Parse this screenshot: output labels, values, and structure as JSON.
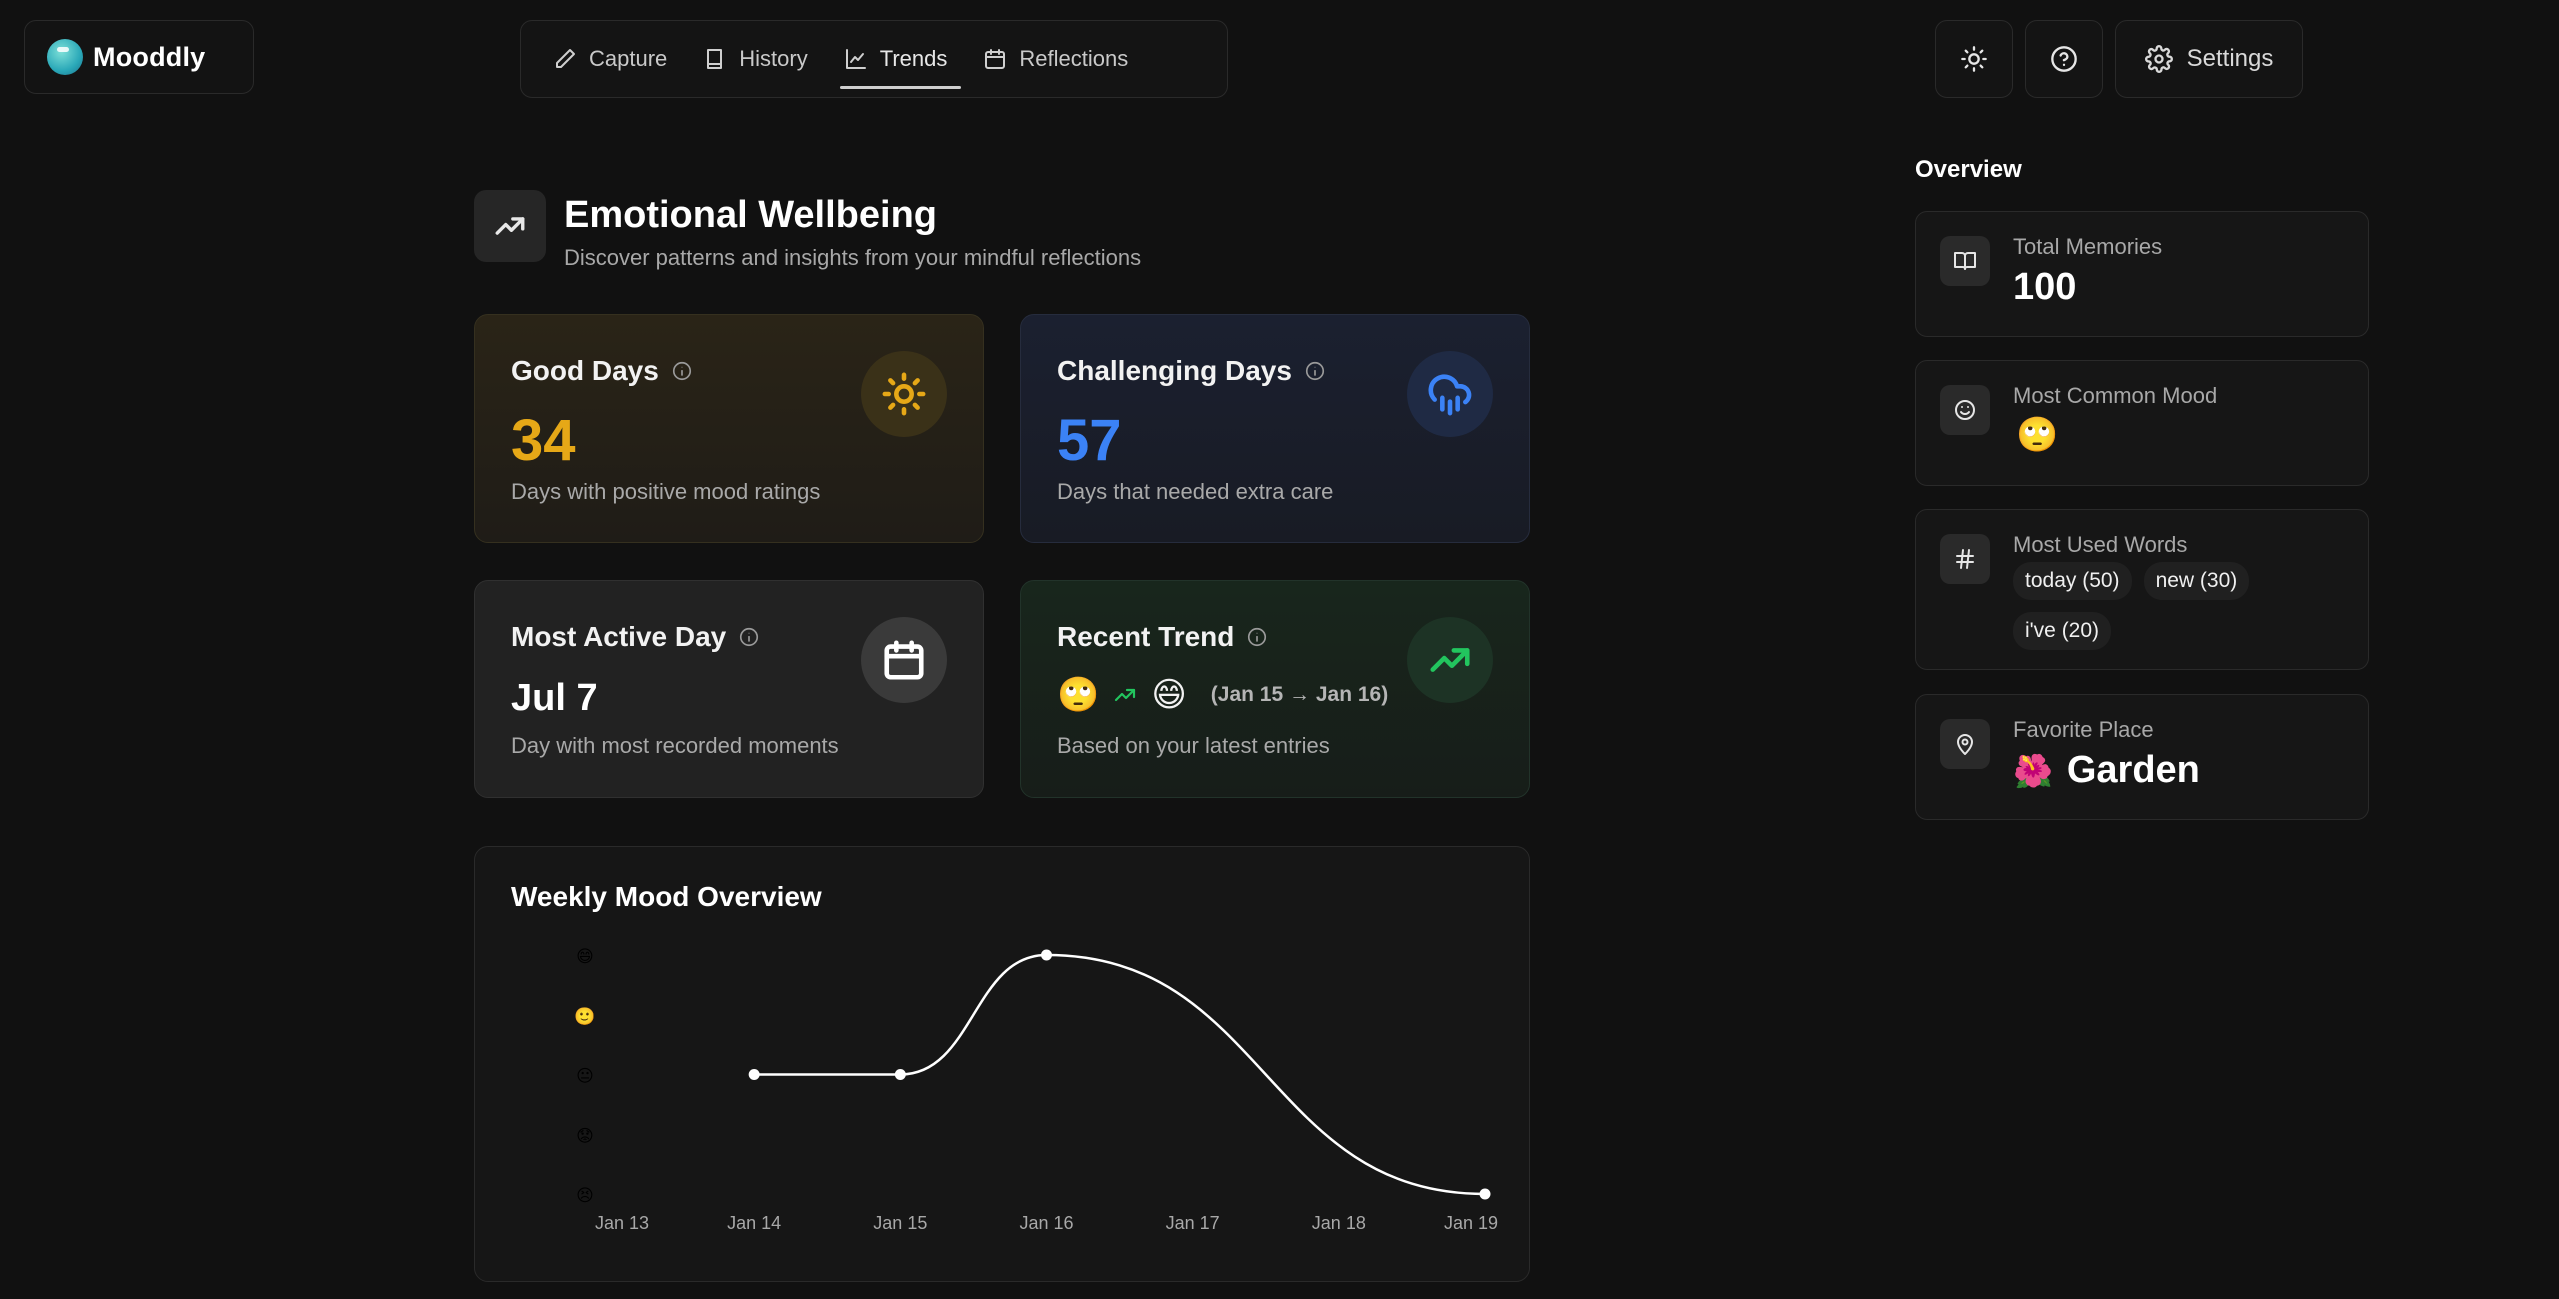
{
  "app": {
    "name": "Mooddly"
  },
  "nav": {
    "items": [
      {
        "label": "Capture",
        "icon": "pencil-icon"
      },
      {
        "label": "History",
        "icon": "book-icon"
      },
      {
        "label": "Trends",
        "icon": "line-chart-icon",
        "active": true
      },
      {
        "label": "Reflections",
        "icon": "calendar-icon"
      }
    ]
  },
  "toolbar": {
    "settings_label": "Settings"
  },
  "header": {
    "title": "Emotional Wellbeing",
    "subtitle": "Discover patterns and insights from your mindful reflections"
  },
  "cards": {
    "good_days": {
      "title": "Good Days",
      "value": "34",
      "desc": "Days with positive mood ratings",
      "color": "#e6a817"
    },
    "challenging_days": {
      "title": "Challenging Days",
      "value": "57",
      "desc": "Days that needed extra care",
      "color": "#3b82f6"
    },
    "most_active_day": {
      "title": "Most Active Day",
      "value": "Jul 7",
      "desc": "Day with most recorded moments"
    },
    "recent_trend": {
      "title": "Recent Trend",
      "from_emoji": "🙄",
      "to_emoji": "😄",
      "range": "(Jan 15 → Jan 16)",
      "desc": "Based on your latest entries",
      "color": "#22c55e"
    }
  },
  "chart_data": {
    "type": "line",
    "title": "Weekly Mood Overview",
    "x": [
      "Jan 13",
      "Jan 14",
      "Jan 15",
      "Jan 16",
      "Jan 17",
      "Jan 18",
      "Jan 19"
    ],
    "y_levels": [
      "😣",
      "😟",
      "😐",
      "🙂",
      "😄"
    ],
    "points": [
      {
        "x": "Jan 14",
        "y": 3
      },
      {
        "x": "Jan 15",
        "y": 3
      },
      {
        "x": "Jan 16",
        "y": 5
      },
      {
        "x": "Jan 19",
        "y": 1
      }
    ],
    "ylim": [
      1,
      5
    ]
  },
  "overview": {
    "title": "Overview",
    "total_memories": {
      "label": "Total Memories",
      "value": "100"
    },
    "most_common_mood": {
      "label": "Most Common Mood",
      "value": "🙄"
    },
    "most_used_words": {
      "label": "Most Used Words",
      "words": [
        "today (50)",
        "new (30)",
        "i've (20)"
      ]
    },
    "favorite_place": {
      "label": "Favorite Place",
      "emoji": "🌺",
      "value": "Garden"
    }
  }
}
